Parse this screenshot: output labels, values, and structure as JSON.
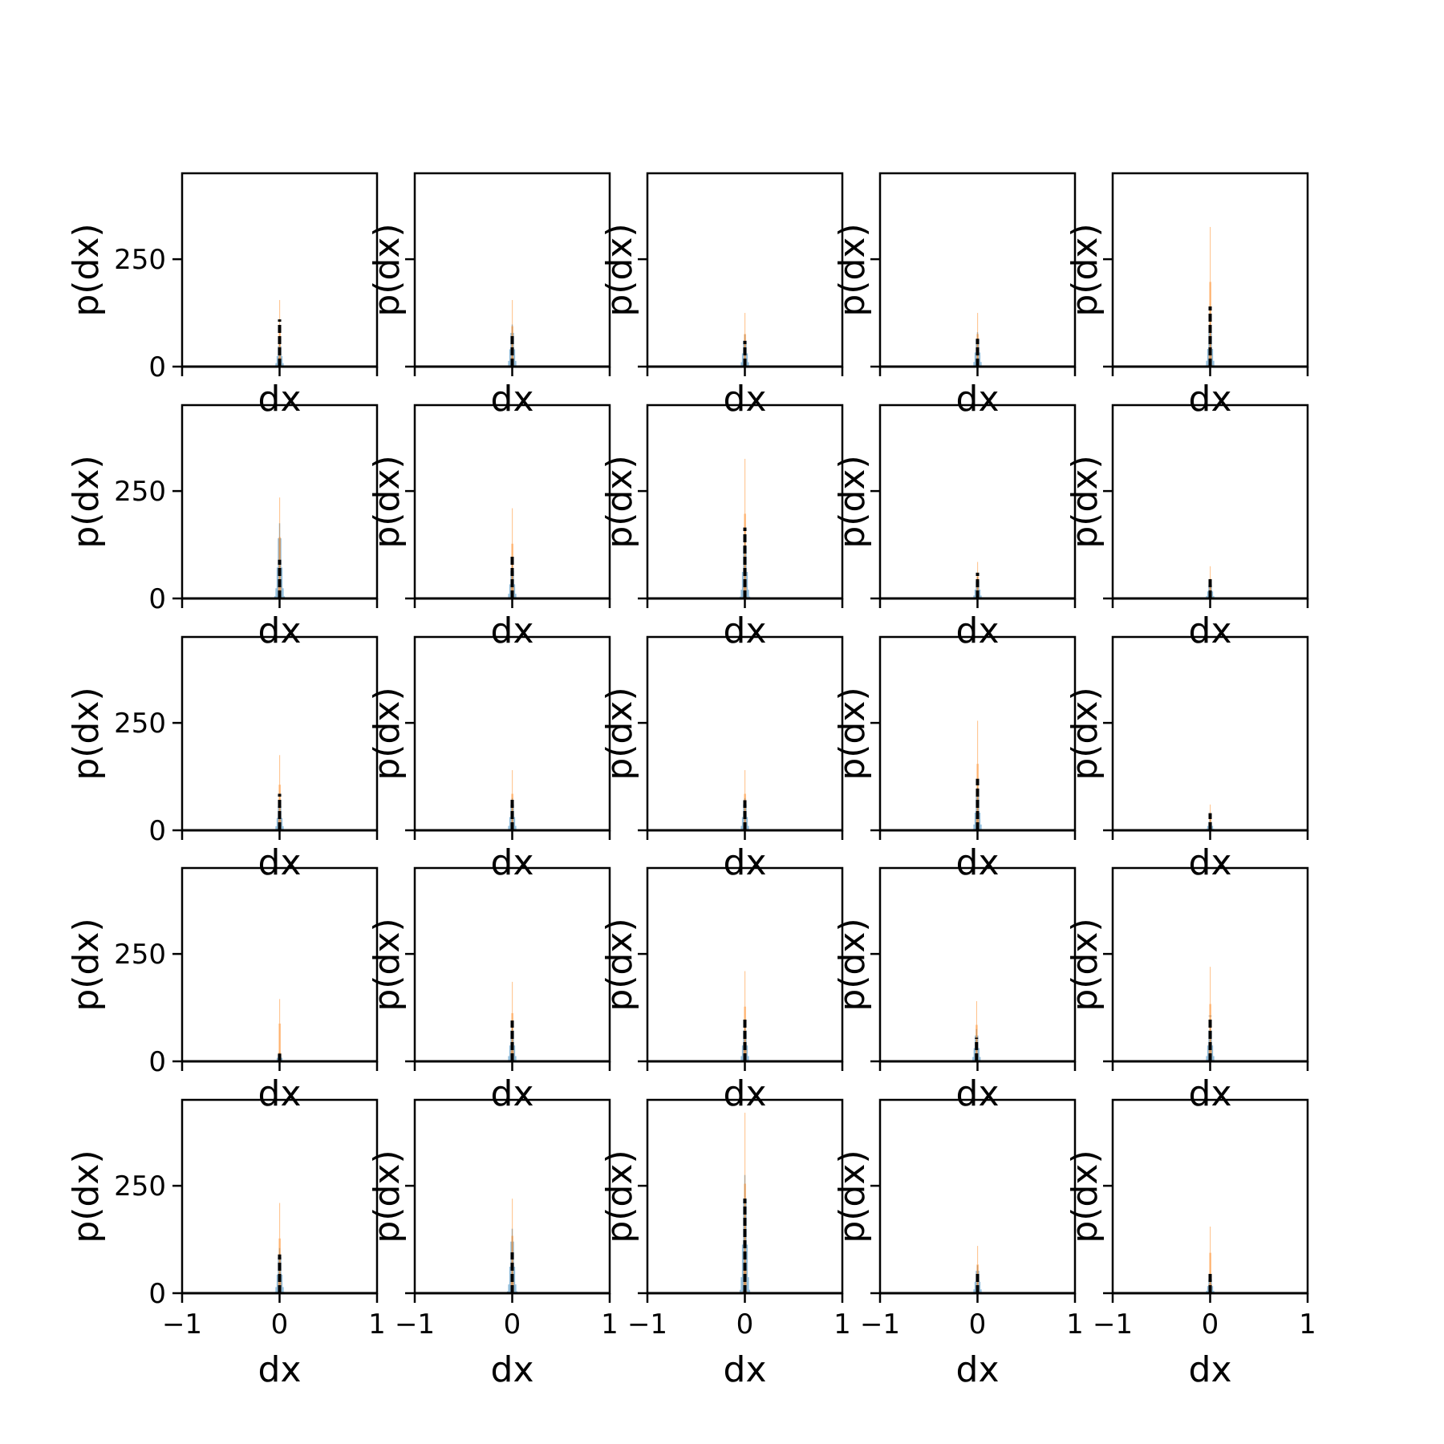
{
  "chart_data": {
    "type": "histogram-grid",
    "rows": 5,
    "cols": 5,
    "xlim": [
      -1,
      1
    ],
    "ylim": [
      0,
      450
    ],
    "xticks": [
      -1,
      0,
      1
    ],
    "xtick_labels": [
      "−1",
      "0",
      "1"
    ],
    "yticks": [
      0,
      250
    ],
    "ytick_labels": [
      "0",
      "250"
    ],
    "xlabel": "dx",
    "ylabel": "p(dx)",
    "grid": false,
    "colors": {
      "blue": "#1f77b4",
      "orange": "#ff7f0e",
      "black": "#000000"
    },
    "panels": [
      {
        "row": 0,
        "col": 0,
        "orange_peak": 155,
        "blue_peak": 60,
        "black_peak": 110,
        "offset": 0.0
      },
      {
        "row": 0,
        "col": 1,
        "orange_peak": 155,
        "blue_peak": 98,
        "black_peak": 75,
        "offset": 0.0
      },
      {
        "row": 0,
        "col": 2,
        "orange_peak": 125,
        "blue_peak": 75,
        "black_peak": 60,
        "offset": 0.0
      },
      {
        "row": 0,
        "col": 3,
        "orange_peak": 125,
        "blue_peak": 80,
        "black_peak": 65,
        "offset": 0.0
      },
      {
        "row": 0,
        "col": 4,
        "orange_peak": 325,
        "blue_peak": 100,
        "black_peak": 140,
        "offset": 0.0
      },
      {
        "row": 1,
        "col": 0,
        "orange_peak": 235,
        "blue_peak": 175,
        "black_peak": 90,
        "offset": 0.0
      },
      {
        "row": 1,
        "col": 1,
        "orange_peak": 210,
        "blue_peak": 80,
        "black_peak": 100,
        "offset": 0.0
      },
      {
        "row": 1,
        "col": 2,
        "orange_peak": 325,
        "blue_peak": 150,
        "black_peak": 165,
        "offset": 0.0
      },
      {
        "row": 1,
        "col": 3,
        "orange_peak": 85,
        "blue_peak": 50,
        "black_peak": 60,
        "offset": 0.0
      },
      {
        "row": 1,
        "col": 4,
        "orange_peak": 75,
        "blue_peak": 40,
        "black_peak": 45,
        "offset": 0.0
      },
      {
        "row": 2,
        "col": 0,
        "orange_peak": 175,
        "blue_peak": 70,
        "black_peak": 85,
        "offset": 0.0
      },
      {
        "row": 2,
        "col": 1,
        "orange_peak": 140,
        "blue_peak": 75,
        "black_peak": 75,
        "offset": 0.0
      },
      {
        "row": 2,
        "col": 2,
        "orange_peak": 140,
        "blue_peak": 75,
        "black_peak": 70,
        "offset": 0.0
      },
      {
        "row": 2,
        "col": 3,
        "orange_peak": 255,
        "blue_peak": 100,
        "black_peak": 120,
        "offset": 0.0
      },
      {
        "row": 2,
        "col": 4,
        "orange_peak": 60,
        "blue_peak": 25,
        "black_peak": 40,
        "offset": 0.0
      },
      {
        "row": 3,
        "col": 0,
        "orange_peak": 145,
        "blue_peak": 20,
        "black_peak": 18,
        "offset": 0.0
      },
      {
        "row": 3,
        "col": 1,
        "orange_peak": 185,
        "blue_peak": 90,
        "black_peak": 95,
        "offset": 0.0
      },
      {
        "row": 3,
        "col": 2,
        "orange_peak": 210,
        "blue_peak": 90,
        "black_peak": 100,
        "offset": 0.0
      },
      {
        "row": 3,
        "col": 3,
        "orange_peak": 140,
        "blue_peak": 75,
        "black_peak": 55,
        "offset": -0.01
      },
      {
        "row": 3,
        "col": 4,
        "orange_peak": 220,
        "blue_peak": 90,
        "black_peak": 105,
        "offset": 0.0
      },
      {
        "row": 4,
        "col": 0,
        "orange_peak": 210,
        "blue_peak": 105,
        "black_peak": 90,
        "offset": 0.0
      },
      {
        "row": 4,
        "col": 1,
        "orange_peak": 220,
        "blue_peak": 150,
        "black_peak": 95,
        "offset": 0.0
      },
      {
        "row": 4,
        "col": 2,
        "orange_peak": 420,
        "blue_peak": 275,
        "black_peak": 220,
        "offset": 0.0
      },
      {
        "row": 4,
        "col": 3,
        "orange_peak": 110,
        "blue_peak": 65,
        "black_peak": 50,
        "offset": 0.0
      },
      {
        "row": 4,
        "col": 4,
        "orange_peak": 155,
        "blue_peak": 40,
        "black_peak": 50,
        "offset": 0.0
      }
    ]
  }
}
